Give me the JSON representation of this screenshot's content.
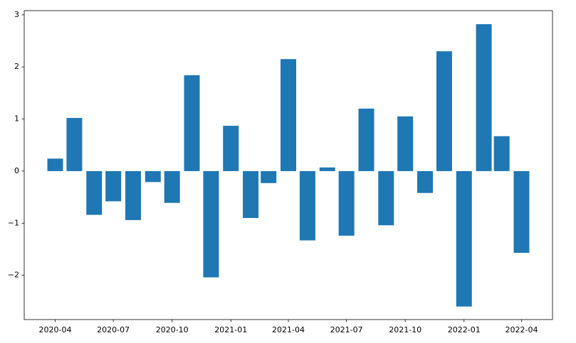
{
  "chart_data": {
    "type": "bar",
    "x": [
      "2020-04",
      "2020-05",
      "2020-06",
      "2020-07",
      "2020-08",
      "2020-09",
      "2020-10",
      "2020-11",
      "2020-12",
      "2021-01",
      "2021-02",
      "2021-03",
      "2021-04",
      "2021-05",
      "2021-06",
      "2021-07",
      "2021-08",
      "2021-09",
      "2021-10",
      "2021-11",
      "2021-12",
      "2022-01",
      "2022-02",
      "2022-03",
      "2022-04"
    ],
    "values": [
      0.24,
      1.02,
      -0.84,
      -0.58,
      -0.94,
      -0.21,
      -0.61,
      1.84,
      -2.04,
      0.87,
      -0.9,
      -0.23,
      2.15,
      -1.33,
      0.07,
      -1.24,
      1.2,
      -1.04,
      1.05,
      -0.42,
      2.3,
      -2.6,
      2.82,
      0.67,
      -1.57
    ],
    "color": "#1f77b4",
    "ylim": [
      -2.85,
      3.08
    ],
    "yticks": [
      {
        "value": -2,
        "label": "−2"
      },
      {
        "value": -1,
        "label": "−1"
      },
      0,
      1,
      2,
      3
    ],
    "xticks": [
      "2020-04",
      "2020-07",
      "2020-10",
      "2021-01",
      "2021-04",
      "2021-07",
      "2021-10",
      "2022-01",
      "2022-04"
    ],
    "grid": false
  }
}
